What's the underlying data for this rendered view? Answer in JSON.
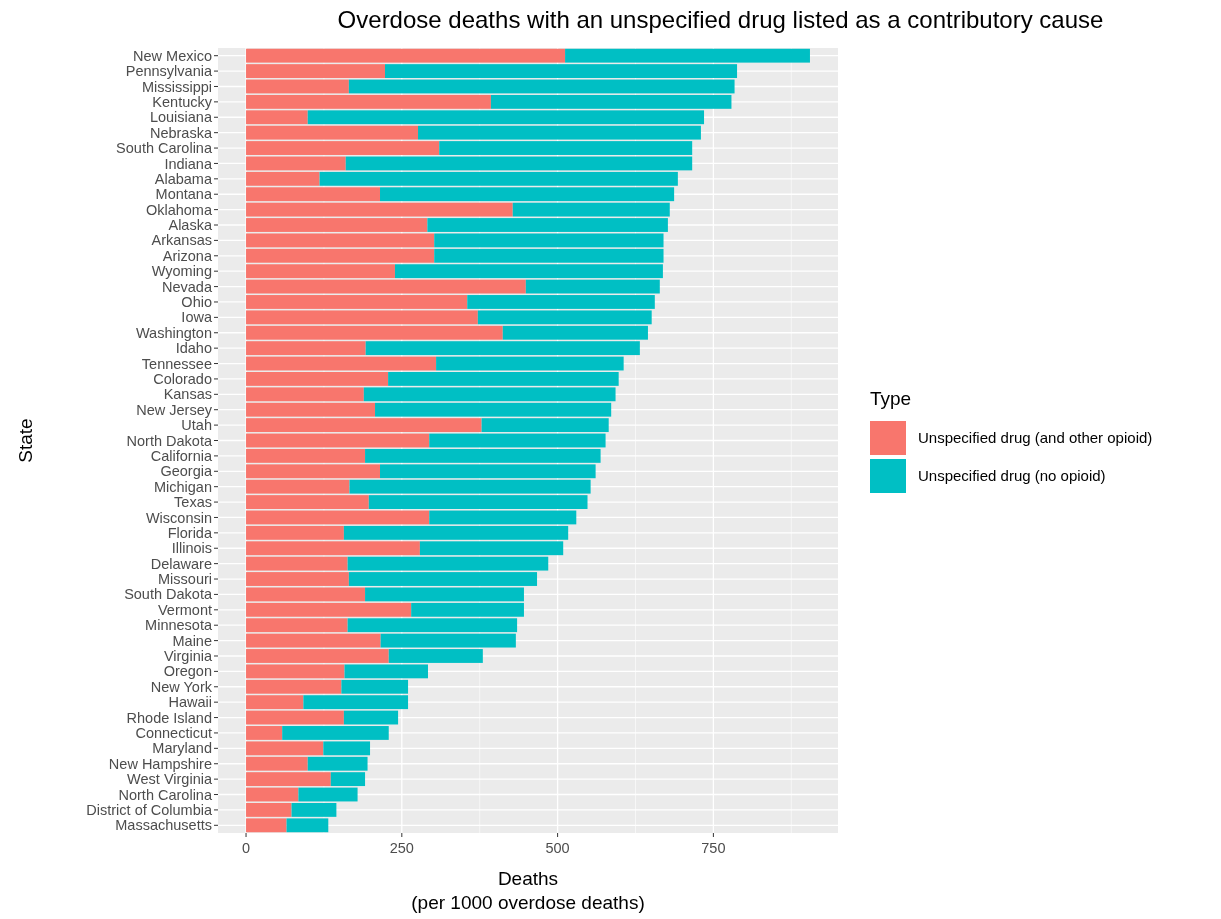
{
  "chart_data": {
    "type": "bar",
    "orientation": "horizontal",
    "stacked": true,
    "title": "Overdose deaths with an unspecified drug listed as a contributory cause",
    "xlabel": "Deaths\n(per 1000 overdose deaths)",
    "ylabel": "State",
    "legend_title": "Type",
    "legend": "right",
    "grid": true,
    "categories": [
      "New Mexico",
      "Pennsylvania",
      "Mississippi",
      "Kentucky",
      "Louisiana",
      "Nebraska",
      "South Carolina",
      "Indiana",
      "Alabama",
      "Montana",
      "Oklahoma",
      "Alaska",
      "Arkansas",
      "Arizona",
      "Wyoming",
      "Nevada",
      "Ohio",
      "Iowa",
      "Washington",
      "Idaho",
      "Tennessee",
      "Colorado",
      "Kansas",
      "New Jersey",
      "Utah",
      "North Dakota",
      "California",
      "Georgia",
      "Michigan",
      "Texas",
      "Wisconsin",
      "Florida",
      "Illinois",
      "Delaware",
      "Missouri",
      "South Dakota",
      "Vermont",
      "Minnesota",
      "Maine",
      "Virginia",
      "Oregon",
      "New York",
      "Hawaii",
      "Rhode Island",
      "Connecticut",
      "Maryland",
      "New Hampshire",
      "West Virginia",
      "North Carolina",
      "District of Columbia",
      "Massachusetts"
    ],
    "xlim": [
      -45,
      950
    ],
    "xticks": [
      0,
      250,
      500,
      750
    ],
    "series": [
      {
        "name": "Unspecified drug (and other opioid)",
        "color": "#f8766d",
        "values": [
          512,
          223,
          165,
          393,
          99,
          276,
          310,
          160,
          118,
          215,
          428,
          291,
          302,
          302,
          239,
          449,
          355,
          372,
          412,
          192,
          305,
          228,
          189,
          207,
          378,
          294,
          191,
          215,
          166,
          197,
          294,
          157,
          279,
          163,
          165,
          191,
          265,
          163,
          216,
          229,
          158,
          153,
          92,
          157,
          58,
          124,
          99,
          136,
          84,
          73,
          65
        ]
      },
      {
        "name": "Unspecified drug (no opioid)",
        "color": "#00bfc4",
        "values": [
          393,
          565,
          619,
          386,
          636,
          454,
          406,
          556,
          575,
          472,
          252,
          386,
          368,
          368,
          430,
          215,
          301,
          279,
          233,
          440,
          301,
          370,
          404,
          379,
          204,
          283,
          378,
          346,
          387,
          351,
          236,
          360,
          230,
          322,
          302,
          255,
          181,
          272,
          217,
          151,
          134,
          107,
          168,
          87,
          171,
          75,
          96,
          55,
          95,
          72,
          67
        ]
      }
    ]
  }
}
